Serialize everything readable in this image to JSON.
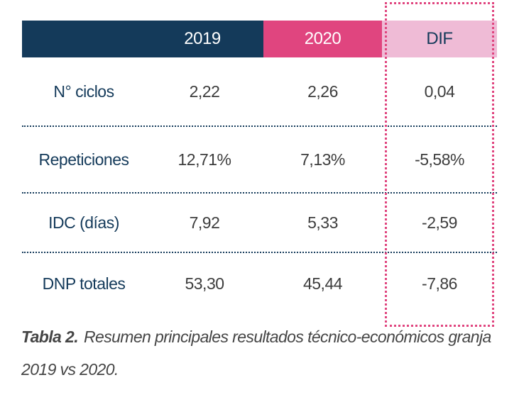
{
  "colors": {
    "navy": "#143a5a",
    "pink": "#e0457f",
    "lightpink": "#efbbd6"
  },
  "table": {
    "headers": {
      "label": "",
      "y2019": "2019",
      "y2020": "2020",
      "dif": "DIF"
    },
    "rows": [
      {
        "label": "N° ciclos",
        "y2019": "2,22",
        "y2020": "2,26",
        "dif": "0,04"
      },
      {
        "label": "Repeticiones",
        "y2019": "12,71%",
        "y2020": "7,13%",
        "dif": "-5,58%"
      },
      {
        "label": "IDC (días)",
        "y2019": "7,92",
        "y2020": "5,33",
        "dif": "-2,59"
      },
      {
        "label": "DNP totales",
        "y2019": "53,30",
        "y2020": "45,44",
        "dif": "-7,86"
      }
    ]
  },
  "caption": {
    "title": "Tabla 2.",
    "text": "Resumen principales resultados técnico-económicos granja 2019 vs 2020."
  }
}
